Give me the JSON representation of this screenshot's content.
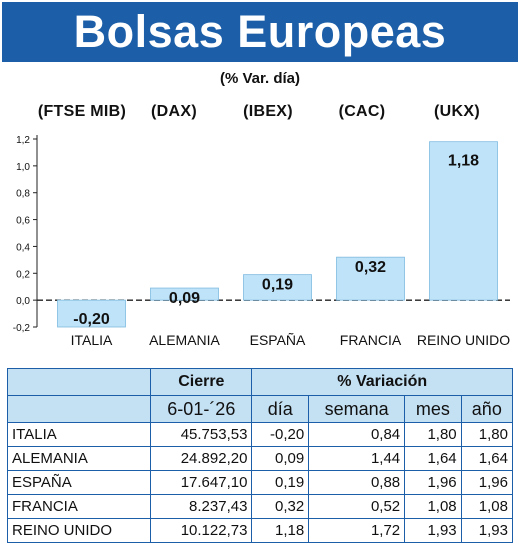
{
  "header": {
    "title": "Bolsas Europeas"
  },
  "subtitle": "(% Var. día)",
  "colors": {
    "header_bg": "#1c5fa8",
    "bar_fill": "#bfe3f8",
    "table_header_bg": "#c4e0f3"
  },
  "chart_data": {
    "type": "bar",
    "indices": [
      "(FTSE MIB)",
      "(DAX)",
      "(IBEX)",
      "(CAC)",
      "(UKX)"
    ],
    "categories": [
      "ITALIA",
      "ALEMANIA",
      "ESPAÑA",
      "FRANCIA",
      "REINO UNIDO"
    ],
    "values": [
      -0.2,
      0.09,
      0.19,
      0.32,
      1.18
    ],
    "value_labels": [
      "-0,20",
      "0,09",
      "0,19",
      "0,32",
      "1,18"
    ],
    "ylim": [
      -0.2,
      1.2
    ],
    "yticks": [
      -0.2,
      0.0,
      0.2,
      0.4,
      0.6,
      0.8,
      1.0,
      1.2
    ],
    "ytick_labels": [
      "-0,2",
      "0,0",
      "0,2",
      "0,4",
      "0,6",
      "0,8",
      "1,0",
      "1,2"
    ],
    "grid": false
  },
  "table": {
    "group_headers": [
      "Cierre",
      "% Variación"
    ],
    "date": "6-01-´26",
    "columns": [
      "día",
      "semana",
      "mes",
      "año"
    ],
    "rows": [
      {
        "name": "ITALIA",
        "cierre": "45.753,53",
        "dia": "-0,20",
        "semana": "0,84",
        "mes": "1,80",
        "ano": "1,80"
      },
      {
        "name": "ALEMANIA",
        "cierre": "24.892,20",
        "dia": "0,09",
        "semana": "1,44",
        "mes": "1,64",
        "ano": "1,64"
      },
      {
        "name": "ESPAÑA",
        "cierre": "17.647,10",
        "dia": "0,19",
        "semana": "0,88",
        "mes": "1,96",
        "ano": "1,96"
      },
      {
        "name": "FRANCIA",
        "cierre": "8.237,43",
        "dia": "0,32",
        "semana": "0,52",
        "mes": "1,08",
        "ano": "1,08"
      },
      {
        "name": "REINO UNIDO",
        "cierre": "10.122,73",
        "dia": "1,18",
        "semana": "1,72",
        "mes": "1,93",
        "ano": "1,93"
      }
    ]
  }
}
